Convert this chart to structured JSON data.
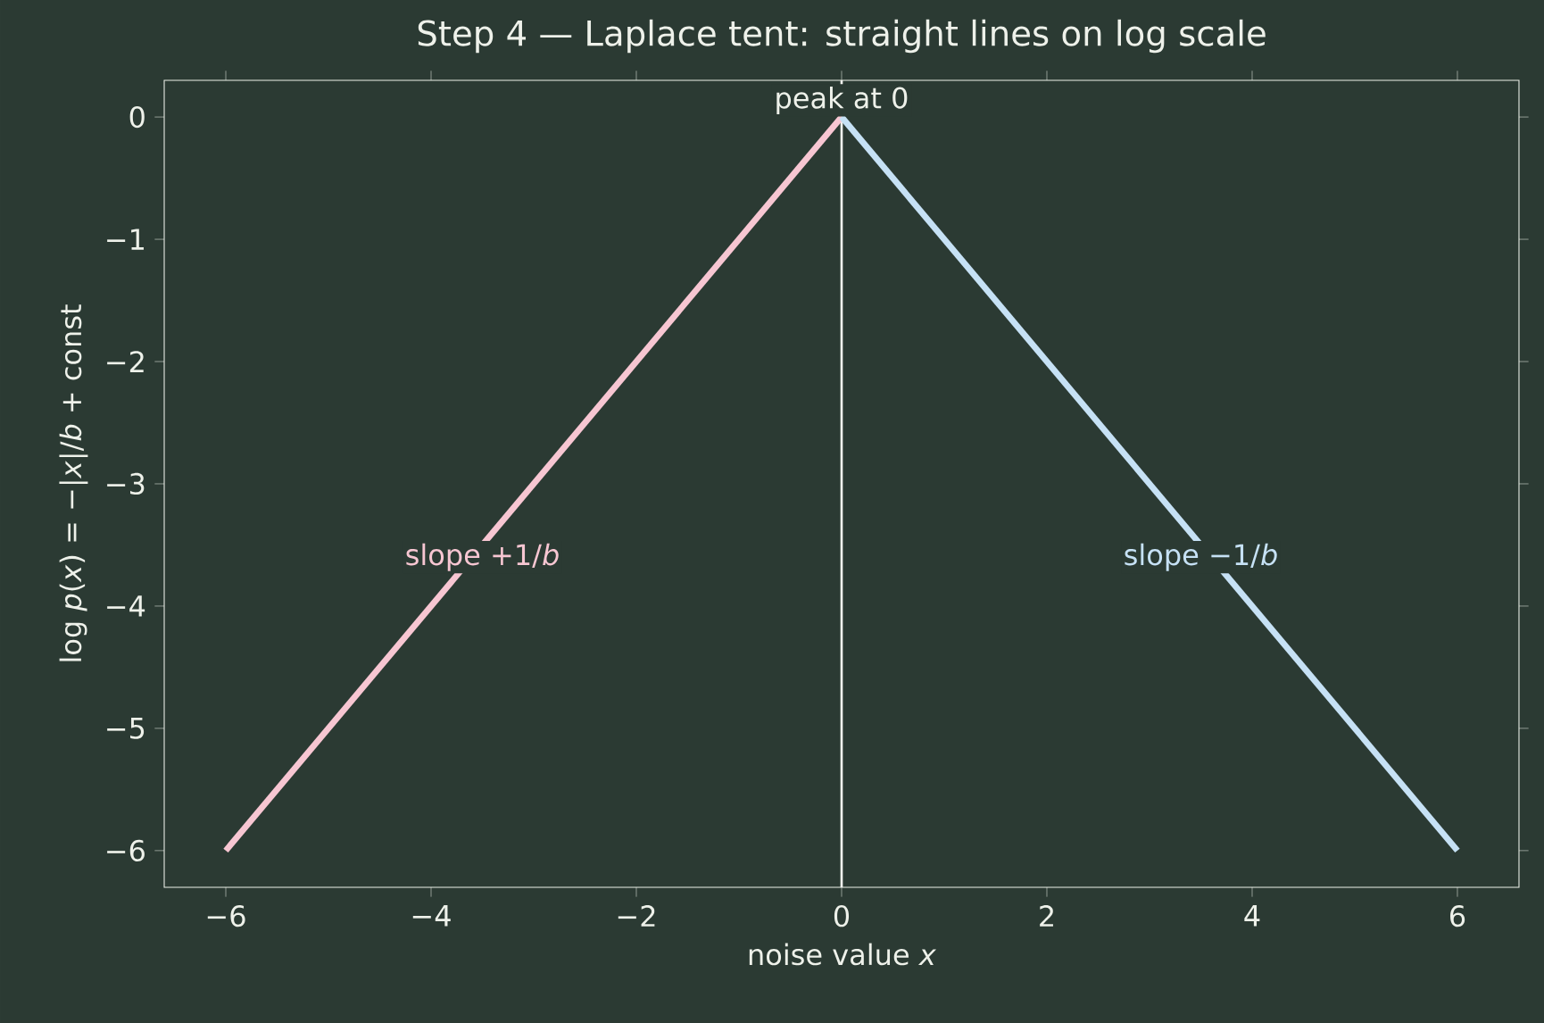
{
  "chart_data": {
    "type": "line",
    "title": "Step 4 — Laplace tent: straight lines on log scale",
    "xlabel": "noise value *x*",
    "ylabel": "log *p*(*x*) = −|*x*|/*b* + const",
    "series": [
      {
        "x": [
          -6,
          0
        ],
        "values": [
          -6,
          0
        ],
        "color": "#f7c6d2"
      },
      {
        "x": [
          0,
          6
        ],
        "values": [
          0,
          -6
        ],
        "color": "#c6e1f5"
      }
    ],
    "xlim": [
      -6.6,
      6.6
    ],
    "ylim": [
      -6.3,
      0.3
    ],
    "xticks": [
      {
        "value": -6,
        "label": "−6"
      },
      {
        "value": -4,
        "label": "−4"
      },
      {
        "value": -2,
        "label": "−2"
      },
      0,
      2,
      4,
      6
    ],
    "yticks": [
      {
        "value": -6,
        "label": "−6"
      },
      {
        "value": -5,
        "label": "−5"
      },
      {
        "value": -4,
        "label": "−4"
      },
      {
        "value": -3,
        "label": "−3"
      },
      {
        "value": -2,
        "label": "−2"
      },
      {
        "value": -1,
        "label": "−1"
      },
      0
    ],
    "ref_lines": [
      {
        "axis": "x",
        "value": 0,
        "color": "#f2f2ee"
      }
    ],
    "annotations": [
      {
        "text": "peak at 0",
        "x": 0,
        "y": 0
      },
      {
        "text": "slope +1/*b*",
        "x": -3.5,
        "y": -3.6
      },
      {
        "text": "slope −1/*b*",
        "x": 3.5,
        "y": -3.6
      }
    ],
    "grid": false,
    "marker": "none",
    "line_style": "solid"
  }
}
